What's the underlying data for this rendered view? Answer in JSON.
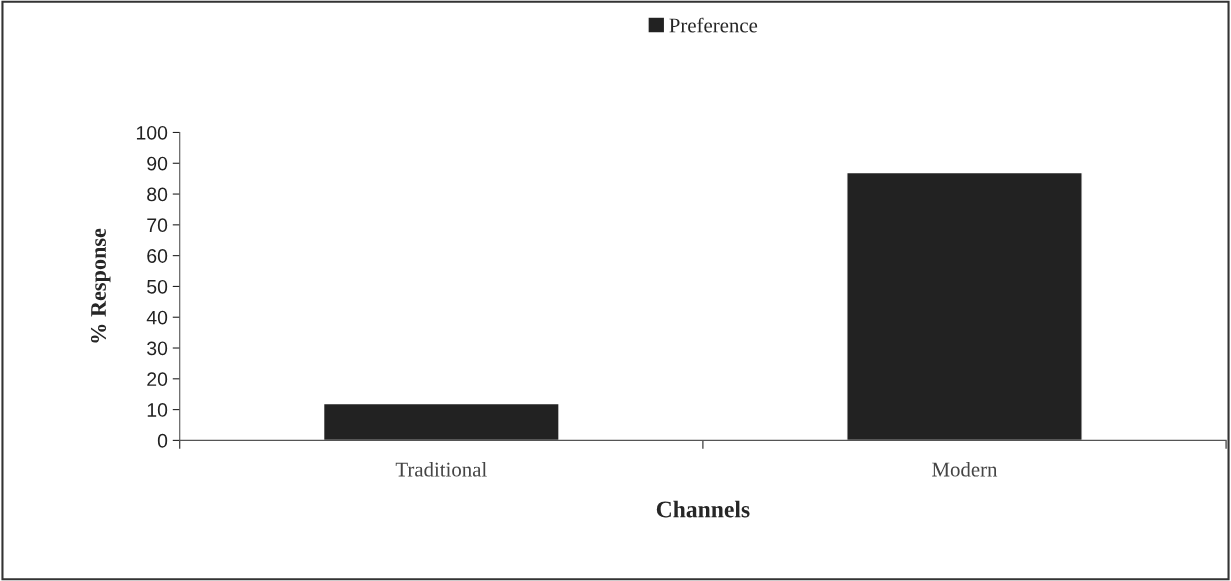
{
  "chart_data": {
    "type": "bar",
    "xlabel": "Channels",
    "ylabel": "% Response",
    "categories": [
      "Traditional",
      "Modern"
    ],
    "series": [
      {
        "name": "Preference",
        "color": "#222222",
        "values": [
          12,
          87
        ]
      }
    ],
    "ylim": [
      0,
      100
    ],
    "yticks": [
      0,
      10,
      20,
      30,
      40,
      50,
      60,
      70,
      80,
      90,
      100
    ],
    "grid": false,
    "legend": "top"
  }
}
